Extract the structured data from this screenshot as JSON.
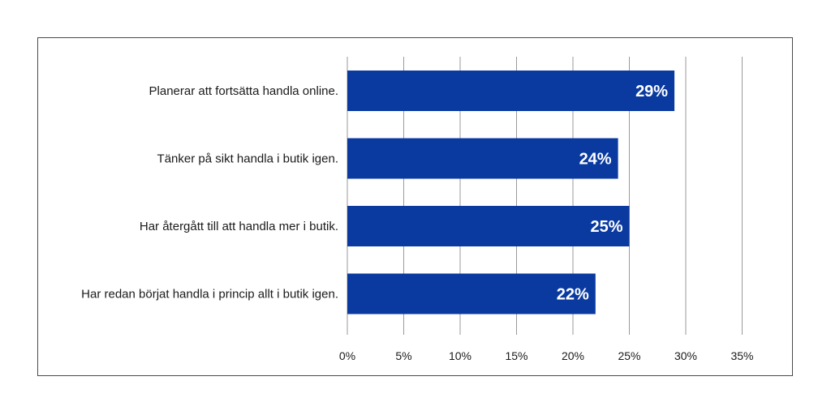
{
  "chart_data": {
    "type": "bar",
    "orientation": "horizontal",
    "categories": [
      "Planerar att fortsätta handla online.",
      "Tänker på sikt handla i butik igen.",
      "Har återgått till att handla mer i butik.",
      "Har redan börjat handla i princip allt i butik igen."
    ],
    "values": [
      29,
      24,
      25,
      22
    ],
    "value_labels": [
      "29%",
      "24%",
      "25%",
      "22%"
    ],
    "x_ticks": [
      "0%",
      "5%",
      "10%",
      "15%",
      "20%",
      "25%",
      "30%",
      "35%"
    ],
    "xlim": [
      0,
      35
    ],
    "grid": true,
    "bar_color": "#0a3aa0",
    "title": "",
    "xlabel": "",
    "ylabel": ""
  }
}
